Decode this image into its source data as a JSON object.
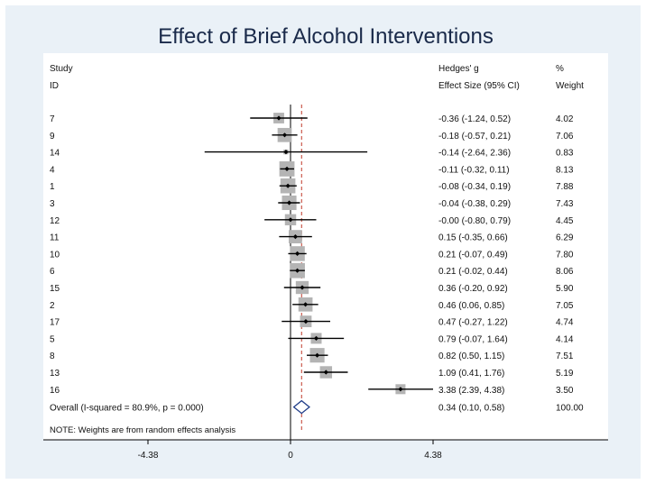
{
  "chart_data": {
    "type": "forest",
    "title": "Effect of Brief Alcohol Interventions",
    "headers": {
      "study_top": "Study",
      "study_bottom": "ID",
      "es_top": "Hedges' g",
      "es_bottom": "Effect Size (95% CI)",
      "weight_top": "%",
      "weight_bottom": "Weight"
    },
    "studies": [
      {
        "id": "7",
        "es": -0.36,
        "lo": -1.24,
        "hi": 0.52,
        "label": "-0.36 (-1.24, 0.52)",
        "weight": "4.02",
        "w": 4.02
      },
      {
        "id": "9",
        "es": -0.18,
        "lo": -0.57,
        "hi": 0.21,
        "label": "-0.18 (-0.57, 0.21)",
        "weight": "7.06",
        "w": 7.06
      },
      {
        "id": "14",
        "es": -0.14,
        "lo": -2.64,
        "hi": 2.36,
        "label": "-0.14 (-2.64, 2.36)",
        "weight": "0.83",
        "w": 0.83
      },
      {
        "id": "4",
        "es": -0.11,
        "lo": -0.32,
        "hi": 0.11,
        "label": "-0.11 (-0.32, 0.11)",
        "weight": "8.13",
        "w": 8.13
      },
      {
        "id": "1",
        "es": -0.08,
        "lo": -0.34,
        "hi": 0.19,
        "label": "-0.08 (-0.34, 0.19)",
        "weight": "7.88",
        "w": 7.88
      },
      {
        "id": "3",
        "es": -0.04,
        "lo": -0.38,
        "hi": 0.29,
        "label": "-0.04 (-0.38, 0.29)",
        "weight": "7.43",
        "w": 7.43
      },
      {
        "id": "12",
        "es": -0.0,
        "lo": -0.8,
        "hi": 0.79,
        "label": "-0.00 (-0.80, 0.79)",
        "weight": "4.45",
        "w": 4.45
      },
      {
        "id": "11",
        "es": 0.15,
        "lo": -0.35,
        "hi": 0.66,
        "label": "0.15 (-0.35, 0.66)",
        "weight": "6.29",
        "w": 6.29
      },
      {
        "id": "10",
        "es": 0.21,
        "lo": -0.07,
        "hi": 0.49,
        "label": "0.21 (-0.07, 0.49)",
        "weight": "7.80",
        "w": 7.8
      },
      {
        "id": "6",
        "es": 0.21,
        "lo": -0.02,
        "hi": 0.44,
        "label": "0.21 (-0.02, 0.44)",
        "weight": "8.06",
        "w": 8.06
      },
      {
        "id": "15",
        "es": 0.36,
        "lo": -0.2,
        "hi": 0.92,
        "label": "0.36 (-0.20, 0.92)",
        "weight": "5.90",
        "w": 5.9
      },
      {
        "id": "2",
        "es": 0.46,
        "lo": 0.06,
        "hi": 0.85,
        "label": "0.46 (0.06, 0.85)",
        "weight": "7.05",
        "w": 7.05
      },
      {
        "id": "17",
        "es": 0.47,
        "lo": -0.27,
        "hi": 1.22,
        "label": "0.47 (-0.27, 1.22)",
        "weight": "4.74",
        "w": 4.74
      },
      {
        "id": "5",
        "es": 0.79,
        "lo": -0.07,
        "hi": 1.64,
        "label": "0.79 (-0.07, 1.64)",
        "weight": "4.14",
        "w": 4.14
      },
      {
        "id": "8",
        "es": 0.82,
        "lo": 0.5,
        "hi": 1.15,
        "label": "0.82 (0.50, 1.15)",
        "weight": "7.51",
        "w": 7.51
      },
      {
        "id": "13",
        "es": 1.09,
        "lo": 0.41,
        "hi": 1.76,
        "label": "1.09 (0.41, 1.76)",
        "weight": "5.19",
        "w": 5.19
      },
      {
        "id": "16",
        "es": 3.38,
        "lo": 2.39,
        "hi": 4.38,
        "label": "3.38 (2.39, 4.38)",
        "weight": "3.50",
        "w": 3.5
      }
    ],
    "overall": {
      "id": "Overall  (I-squared = 80.9%, p = 0.000)",
      "es": 0.34,
      "lo": 0.1,
      "hi": 0.58,
      "label": "0.34 (0.10, 0.58)",
      "weight": "100.00"
    },
    "note": "NOTE: Weights are from random effects analysis",
    "x_ticks": [
      {
        "value": -4.38,
        "label": "-4.38"
      },
      {
        "value": 0,
        "label": "0"
      },
      {
        "value": 4.38,
        "label": "4.38"
      }
    ],
    "xlim": [
      -4.38,
      4.38
    ],
    "colors": {
      "background": "#eaf1f7",
      "panel": "#ffffff",
      "box": "#b4b4b4",
      "line": "#000000",
      "overall_line": "#c0392b",
      "diamond": "#1f3c88",
      "title": "#1a2a4a"
    }
  }
}
